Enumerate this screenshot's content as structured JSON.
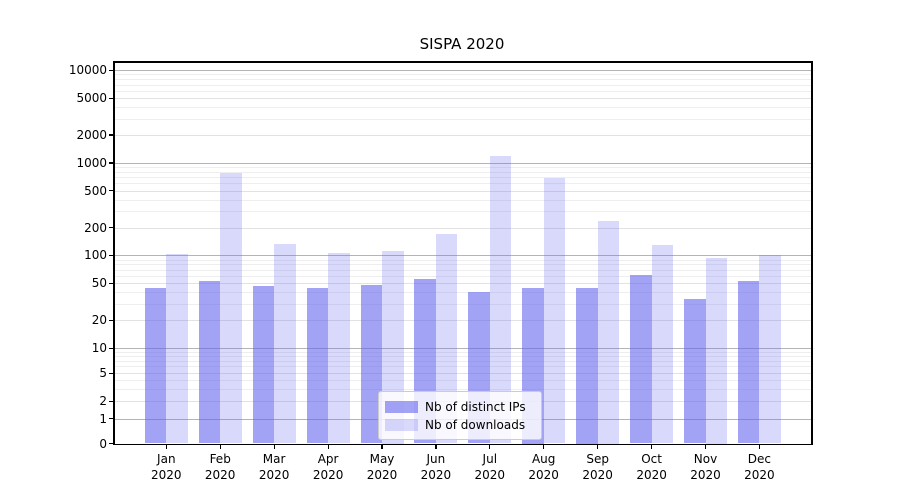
{
  "title": "SISPA 2020",
  "legend": {
    "items": [
      {
        "label": "Nb of distinct IPs",
        "swatch_color": "rgba(102,102,238,0.6)"
      },
      {
        "label": "Nb of downloads",
        "swatch_color": "rgba(102,102,238,0.25)"
      }
    ]
  },
  "axes": {
    "y_tick_values": [
      0,
      1,
      2,
      5,
      10,
      20,
      50,
      100,
      200,
      500,
      1000,
      2000,
      5000,
      10000
    ],
    "x_tick_labels": [
      "Jan 2020",
      "Feb 2020",
      "Mar 2020",
      "Apr 2020",
      "May 2020",
      "Jun 2020",
      "Jul 2020",
      "Aug 2020",
      "Sep 2020",
      "Oct 2020",
      "Nov 2020",
      "Dec 2020"
    ]
  },
  "chart_data": {
    "type": "bar",
    "title": "SISPA 2020",
    "categories": [
      "Jan 2020",
      "Feb 2020",
      "Mar 2020",
      "Apr 2020",
      "May 2020",
      "Jun 2020",
      "Jul 2020",
      "Aug 2020",
      "Sep 2020",
      "Oct 2020",
      "Nov 2020",
      "Dec 2020"
    ],
    "series": [
      {
        "name": "Nb of distinct IPs",
        "color": "rgba(102,102,238,0.6)",
        "values": [
          44,
          53,
          47,
          44,
          48,
          56,
          40,
          45,
          45,
          61,
          34,
          53
        ]
      },
      {
        "name": "Nb of downloads",
        "color": "rgba(102,102,238,0.25)",
        "values": [
          104,
          780,
          134,
          107,
          113,
          172,
          1180,
          680,
          235,
          130,
          95,
          102
        ]
      }
    ],
    "yscale": "symlog",
    "ylim": [
      0,
      12500
    ],
    "y_ticks": [
      0,
      1,
      2,
      5,
      10,
      20,
      50,
      100,
      200,
      500,
      1000,
      2000,
      5000,
      10000
    ],
    "grid": "both",
    "legend_position": "lower center"
  },
  "colors": {
    "grid_major": "#b4b4b4",
    "grid_sub": "#e2e2e2",
    "grid_minor": "#eeeeee",
    "spine": "#000000",
    "text": "#000000",
    "background": "#ffffff",
    "legend_border": "#cccccc"
  }
}
